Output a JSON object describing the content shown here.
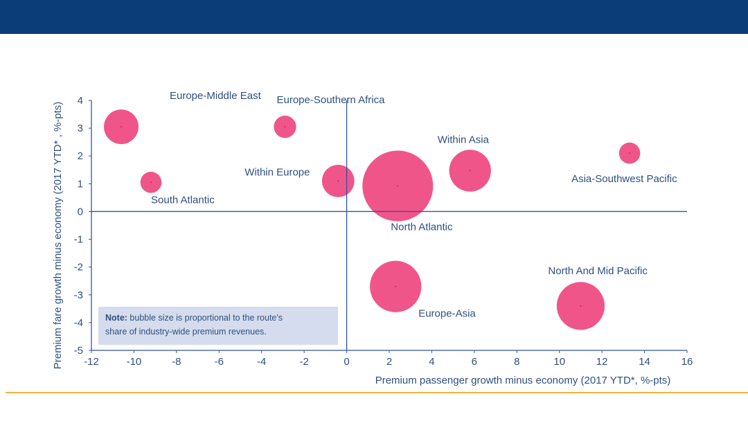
{
  "colors": {
    "header": "#0b3d78",
    "accent_rule": "#f2b33d",
    "bubble": "#f0558a",
    "axis": "#2f5597",
    "note_bg": "#d5dced"
  },
  "chart_data": {
    "type": "bubble",
    "xlabel": "Premium passenger growth minus economy (2017 YTD*, %-pts)",
    "ylabel": "Premium fare growth minus economy (2017 YTD* , %-pts)",
    "xlim": [
      -12,
      16
    ],
    "ylim": [
      -5,
      4
    ],
    "xticks": [
      -12,
      -10,
      -8,
      -6,
      -4,
      -2,
      0,
      2,
      4,
      6,
      8,
      10,
      12,
      14,
      16
    ],
    "yticks": [
      4,
      3,
      2,
      1,
      0,
      -1,
      -2,
      -3,
      -4,
      -5
    ],
    "grid": false,
    "points": [
      {
        "label": "Europe-Middle East",
        "x": -10.6,
        "y": 3.05,
        "size": 24
      },
      {
        "label": "South Atlantic",
        "x": -9.2,
        "y": 1.05,
        "size": 9
      },
      {
        "label": "Europe-Southern Africa",
        "x": -2.9,
        "y": 3.05,
        "size": 10
      },
      {
        "label": "Within Europe",
        "x": -0.4,
        "y": 1.1,
        "size": 21
      },
      {
        "label": "North Atlantic",
        "x": 2.4,
        "y": 0.92,
        "size": 100
      },
      {
        "label": "Within Asia",
        "x": 5.8,
        "y": 1.47,
        "size": 35
      },
      {
        "label": "Asia-Southwest Pacific",
        "x": 13.3,
        "y": 2.1,
        "size": 9
      },
      {
        "label": "Europe-Asia",
        "x": 2.3,
        "y": -2.7,
        "size": 53
      },
      {
        "label": "North And Mid Pacific",
        "x": 11.0,
        "y": -3.4,
        "size": 46
      }
    ],
    "note": {
      "bold": "Note:",
      "line1": " bubble size is proportional  to the route's",
      "line2": "share of industry-wide premium  revenues."
    }
  }
}
